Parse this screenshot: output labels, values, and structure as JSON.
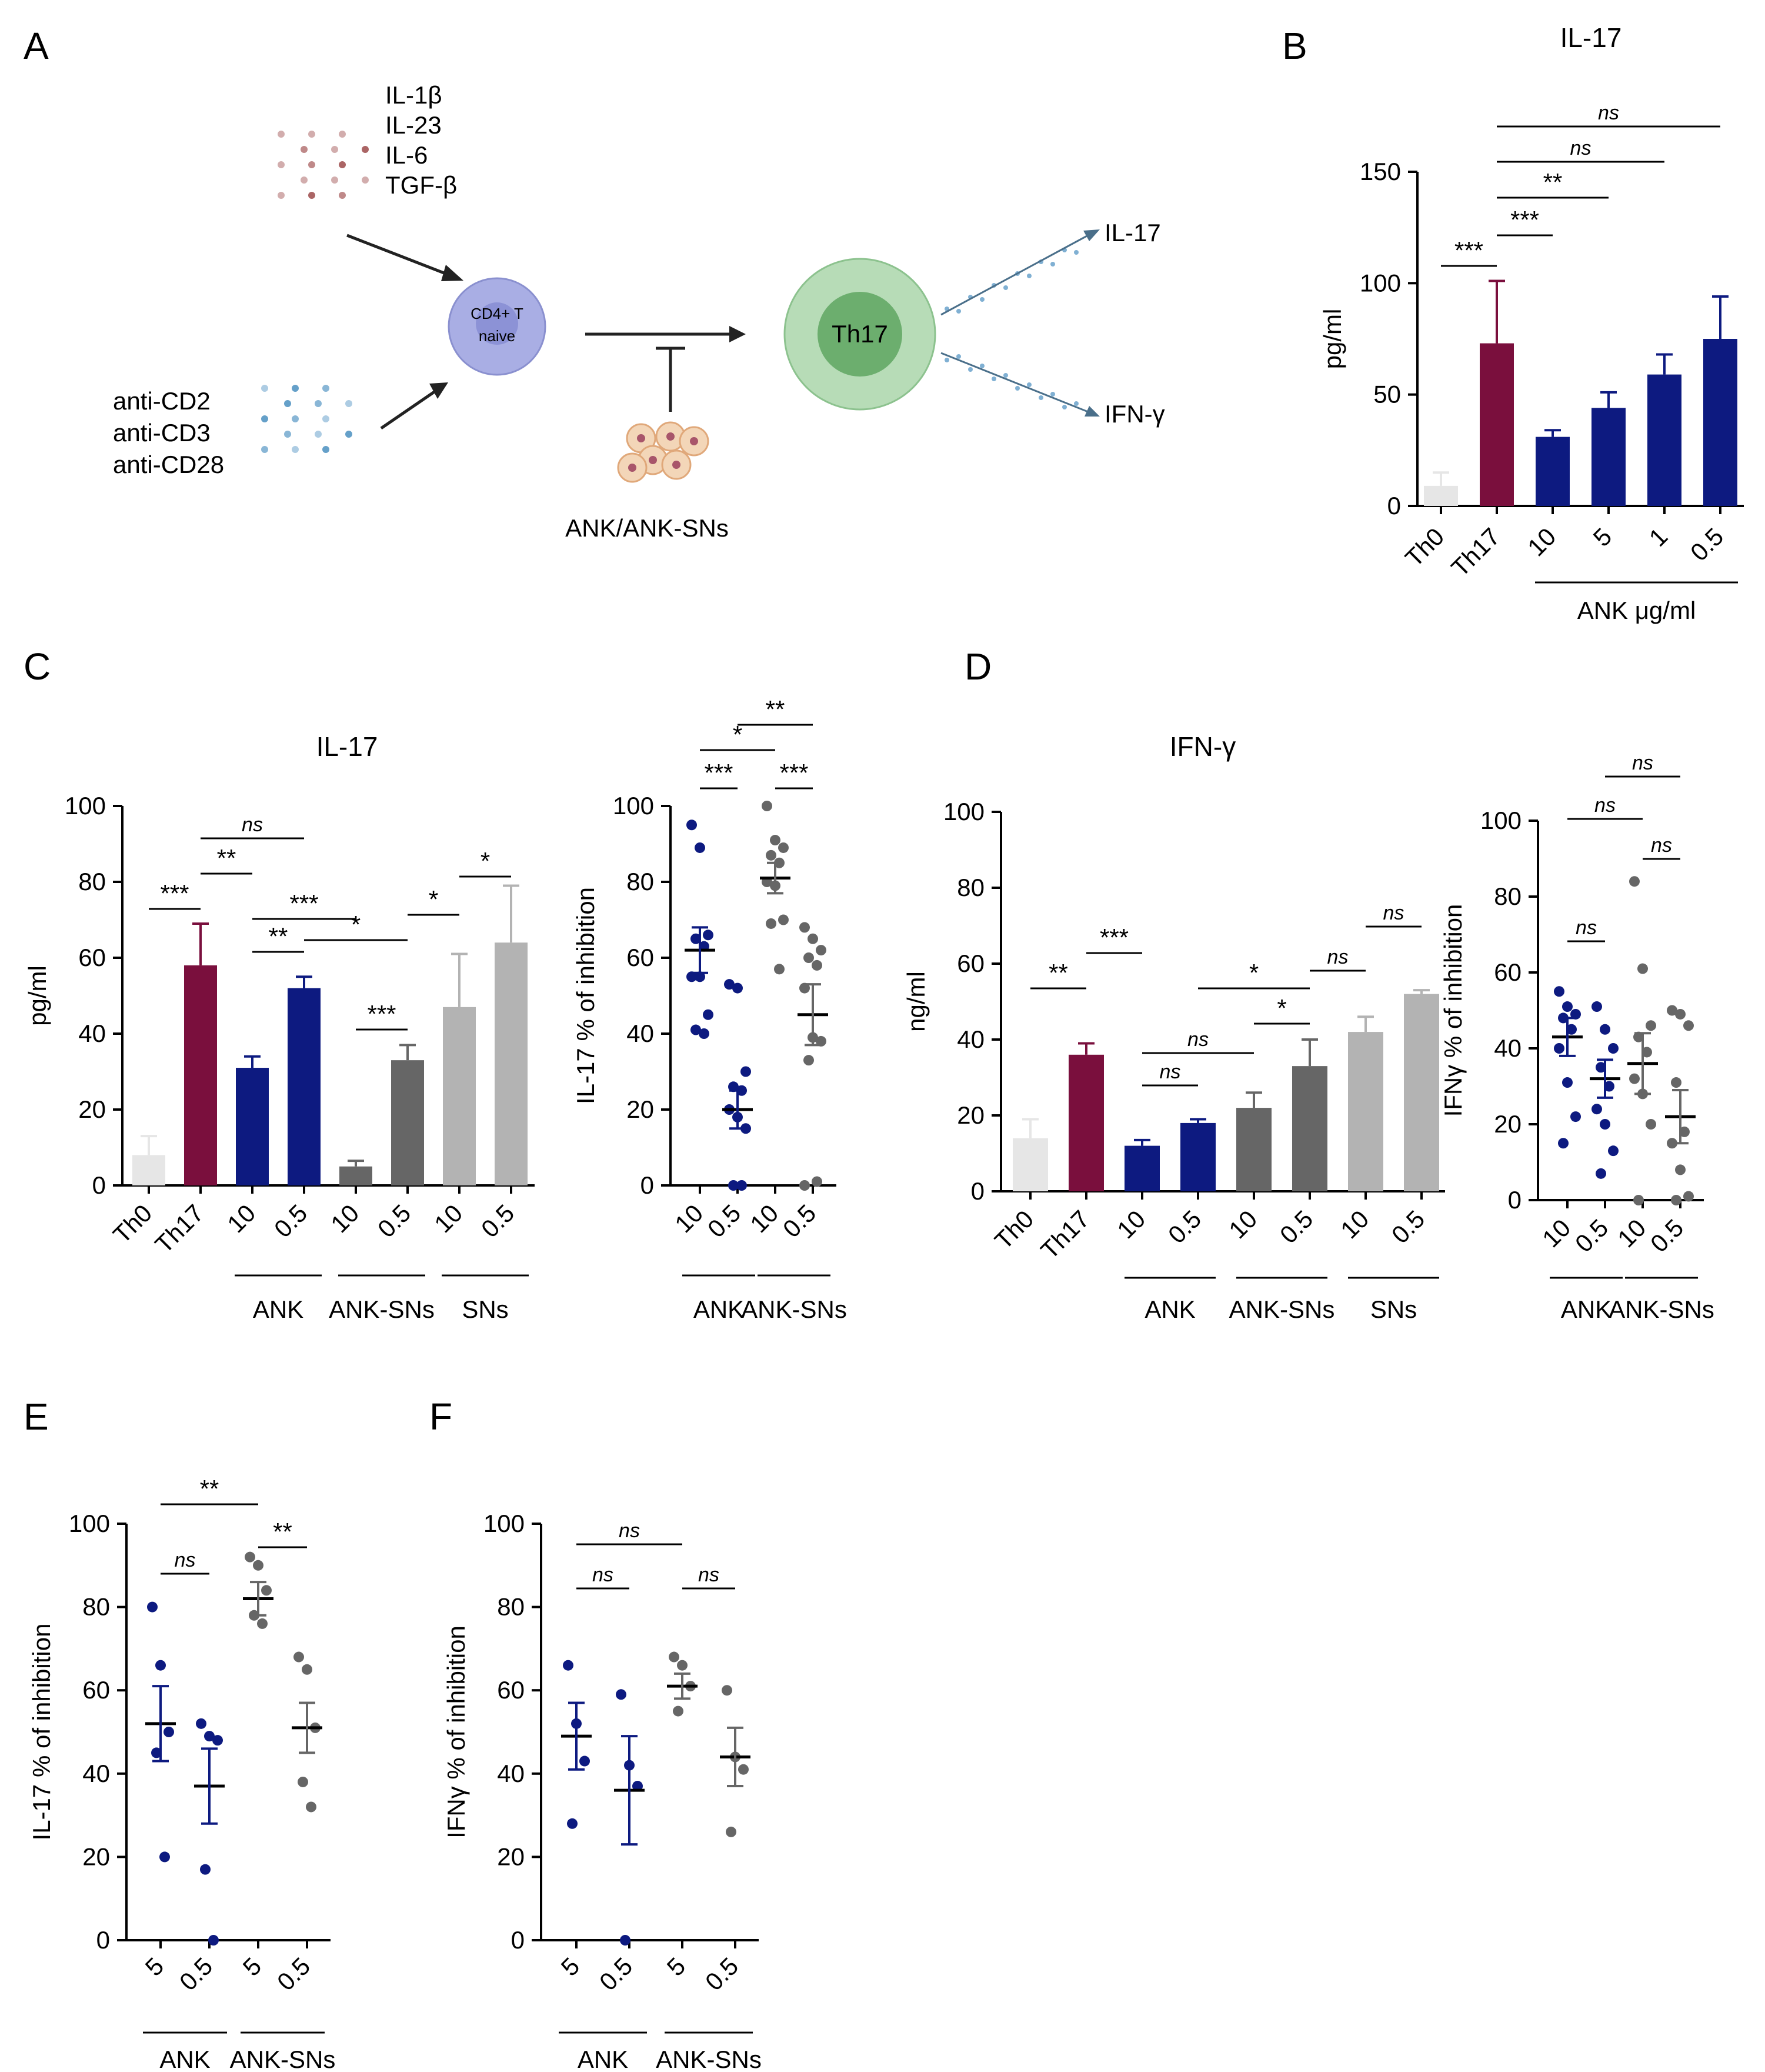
{
  "colors": {
    "th0": "#e6e6e6",
    "th17": "#7a0f3d",
    "ank": "#0d1a80",
    "ank_sns": "#666666",
    "sns": "#b3b3b3",
    "cytokine_dots": "#9c4a4a",
    "bead_dots": "#4a8fc0",
    "naive_cell": "#a9aee4",
    "th17_cell": "#93c898"
  },
  "panel_letters": [
    "A",
    "B",
    "C",
    "D",
    "E",
    "F"
  ],
  "schematic": {
    "cytokines": [
      "IL-1β",
      "IL-23",
      "IL-6",
      "TGF-β"
    ],
    "antibodies": [
      "anti-CD2",
      "anti-CD3",
      "anti-CD28"
    ],
    "naive_cell_lines": [
      "CD4+ T",
      "naive"
    ],
    "th17_label": "Th17",
    "treatment_label": "ANK/ANK-SNs",
    "outputs": [
      "IL-17",
      "IFN-γ"
    ]
  },
  "chart_data": [
    {
      "id": "B",
      "type": "bar",
      "title": "IL-17",
      "ylabel": "pg/ml",
      "ylim": [
        0,
        150
      ],
      "yticks": [
        0,
        50,
        100,
        150
      ],
      "categories": [
        "Th0",
        "Th17",
        "10",
        "5",
        "1",
        "0.5"
      ],
      "values": [
        9,
        73,
        31,
        44,
        59,
        75
      ],
      "errors": [
        6,
        28,
        3,
        7,
        9,
        19
      ],
      "bar_colors": [
        "th0",
        "th17",
        "ank",
        "ank",
        "ank",
        "ank"
      ],
      "groups": [
        {
          "label": "ANK μg/ml",
          "from": 2,
          "to": 5
        }
      ],
      "significance": [
        {
          "label": "***",
          "from": 0,
          "to": 1
        },
        {
          "label": "***",
          "from": 1,
          "to": 2
        },
        {
          "label": "**",
          "from": 1,
          "to": 3
        },
        {
          "label": "ns",
          "from": 1,
          "to": 4
        },
        {
          "label": "ns",
          "from": 1,
          "to": 5
        }
      ]
    },
    {
      "id": "C1",
      "type": "bar",
      "title": "IL-17",
      "ylabel": "pg/ml",
      "ylim": [
        0,
        100
      ],
      "yticks": [
        0,
        20,
        40,
        60,
        80,
        100
      ],
      "categories": [
        "Th0",
        "Th17",
        "10",
        "0.5",
        "10",
        "0.5",
        "10",
        "0.5"
      ],
      "values": [
        8,
        58,
        31,
        52,
        5,
        33,
        47,
        64
      ],
      "errors": [
        5,
        11,
        3,
        3,
        1.5,
        4,
        14,
        15
      ],
      "bar_colors": [
        "th0",
        "th17",
        "ank",
        "ank",
        "ank_sns",
        "ank_sns",
        "sns",
        "sns"
      ],
      "groups": [
        {
          "label": "ANK",
          "from": 2,
          "to": 3
        },
        {
          "label": "ANK-SNs",
          "from": 4,
          "to": 5
        },
        {
          "label": "SNs",
          "from": 6,
          "to": 7
        }
      ],
      "significance": [
        {
          "label": "***",
          "from": 0,
          "to": 1
        },
        {
          "label": "**",
          "from": 1,
          "to": 2
        },
        {
          "label": "ns",
          "from": 1,
          "to": 3
        },
        {
          "label": "***",
          "from": 2,
          "to": 4
        },
        {
          "label": "**",
          "from": 2,
          "to": 3
        },
        {
          "label": "*",
          "from": 3,
          "to": 5
        },
        {
          "label": "***",
          "from": 4,
          "to": 5
        },
        {
          "label": "*",
          "from": 5,
          "to": 6
        },
        {
          "label": "*",
          "from": 6,
          "to": 7
        }
      ]
    },
    {
      "id": "C2",
      "type": "scatter",
      "ylabel": "IL-17 % of inhibition",
      "ylim": [
        0,
        100
      ],
      "yticks": [
        0,
        20,
        40,
        60,
        80,
        100
      ],
      "categories": [
        "10",
        "0.5",
        "10",
        "0.5"
      ],
      "point_colors": [
        "ank",
        "ank",
        "ank_sns",
        "ank_sns"
      ],
      "points": [
        [
          95,
          89,
          66,
          65,
          63,
          55,
          55,
          45,
          41,
          40
        ],
        [
          53,
          52,
          30,
          26,
          25,
          20,
          18,
          15,
          0,
          0
        ],
        [
          100,
          91,
          89,
          87,
          85,
          80,
          79,
          70,
          69,
          57
        ],
        [
          68,
          65,
          62,
          60,
          58,
          52,
          39,
          38,
          33,
          1,
          0
        ]
      ],
      "means": [
        62,
        20,
        81,
        45
      ],
      "sem": [
        6,
        5,
        4,
        8
      ],
      "groups": [
        {
          "label": "ANK",
          "from": 0,
          "to": 1
        },
        {
          "label": "ANK-SNs",
          "from": 2,
          "to": 3
        }
      ],
      "significance": [
        {
          "label": "***",
          "from": 0,
          "to": 1
        },
        {
          "label": "*",
          "from": 0,
          "to": 2
        },
        {
          "label": "**",
          "from": 1,
          "to": 3
        },
        {
          "label": "***",
          "from": 2,
          "to": 3
        }
      ]
    },
    {
      "id": "D1",
      "type": "bar",
      "title": "IFN-γ",
      "ylabel": "ng/ml",
      "ylim": [
        0,
        100
      ],
      "yticks": [
        0,
        20,
        40,
        60,
        80,
        100
      ],
      "categories": [
        "Th0",
        "Th17",
        "10",
        "0.5",
        "10",
        "0.5",
        "10",
        "0.5"
      ],
      "values": [
        14,
        36,
        12,
        18,
        22,
        33,
        42,
        52
      ],
      "errors": [
        5,
        3,
        1.5,
        1,
        4,
        7,
        4,
        1
      ],
      "bar_colors": [
        "th0",
        "th17",
        "ank",
        "ank",
        "ank_sns",
        "ank_sns",
        "sns",
        "sns"
      ],
      "groups": [
        {
          "label": "ANK",
          "from": 2,
          "to": 3
        },
        {
          "label": "ANK-SNs",
          "from": 4,
          "to": 5
        },
        {
          "label": "SNs",
          "from": 6,
          "to": 7
        }
      ],
      "significance": [
        {
          "label": "**",
          "from": 0,
          "to": 1
        },
        {
          "label": "***",
          "from": 1,
          "to": 2
        },
        {
          "label": "ns",
          "from": 2,
          "to": 3
        },
        {
          "label": "ns",
          "from": 2,
          "to": 4
        },
        {
          "label": "*",
          "from": 3,
          "to": 5
        },
        {
          "label": "*",
          "from": 4,
          "to": 5
        },
        {
          "label": "ns",
          "from": 5,
          "to": 6
        },
        {
          "label": "ns",
          "from": 6,
          "to": 7
        }
      ]
    },
    {
      "id": "D2",
      "type": "scatter",
      "ylabel": "IFNγ % of inhibition",
      "ylim": [
        0,
        100
      ],
      "yticks": [
        0,
        20,
        40,
        60,
        80,
        100
      ],
      "categories": [
        "10",
        "0.5",
        "10",
        "0.5"
      ],
      "point_colors": [
        "ank",
        "ank",
        "ank_sns",
        "ank_sns"
      ],
      "points": [
        [
          55,
          51,
          49,
          48,
          45,
          40,
          31,
          22,
          15
        ],
        [
          51,
          45,
          40,
          35,
          30,
          24,
          20,
          13,
          7
        ],
        [
          84,
          61,
          46,
          43,
          39,
          32,
          28,
          20,
          0
        ],
        [
          50,
          49,
          46,
          31,
          18,
          15,
          8,
          1,
          0
        ]
      ],
      "means": [
        43,
        32,
        36,
        22
      ],
      "sem": [
        5,
        5,
        8,
        7
      ],
      "groups": [
        {
          "label": "ANK",
          "from": 0,
          "to": 1
        },
        {
          "label": "ANK-SNs",
          "from": 2,
          "to": 3
        }
      ],
      "significance": [
        {
          "label": "ns",
          "from": 0,
          "to": 1
        },
        {
          "label": "ns",
          "from": 0,
          "to": 2
        },
        {
          "label": "ns",
          "from": 1,
          "to": 3
        },
        {
          "label": "ns",
          "from": 2,
          "to": 3
        }
      ]
    },
    {
      "id": "E",
      "type": "scatter",
      "ylabel": "IL-17 % of inhibition",
      "ylim": [
        0,
        100
      ],
      "yticks": [
        0,
        20,
        40,
        60,
        80,
        100
      ],
      "categories": [
        "5",
        "0.5",
        "5",
        "0.5"
      ],
      "point_colors": [
        "ank",
        "ank",
        "ank_sns",
        "ank_sns"
      ],
      "points": [
        [
          80,
          66,
          50,
          45,
          20
        ],
        [
          52,
          49,
          48,
          17,
          0
        ],
        [
          92,
          90,
          84,
          78,
          76
        ],
        [
          68,
          65,
          51,
          38,
          32
        ]
      ],
      "means": [
        52,
        37,
        82,
        51
      ],
      "sem": [
        9,
        9,
        4,
        6
      ],
      "groups": [
        {
          "label": "ANK",
          "from": 0,
          "to": 1
        },
        {
          "label": "ANK-SNs",
          "from": 2,
          "to": 3
        }
      ],
      "significance": [
        {
          "label": "ns",
          "from": 0,
          "to": 1
        },
        {
          "label": "**",
          "from": 0,
          "to": 2
        },
        {
          "label": "**",
          "from": 2,
          "to": 3
        }
      ]
    },
    {
      "id": "F",
      "type": "scatter",
      "ylabel": "IFNγ % of inhibition",
      "ylim": [
        0,
        100
      ],
      "yticks": [
        0,
        20,
        40,
        60,
        80,
        100
      ],
      "categories": [
        "5",
        "0.5",
        "5",
        "0.5"
      ],
      "point_colors": [
        "ank",
        "ank",
        "ank_sns",
        "ank_sns"
      ],
      "points": [
        [
          66,
          52,
          43,
          28
        ],
        [
          59,
          42,
          37,
          0
        ],
        [
          68,
          66,
          61,
          55
        ],
        [
          60,
          44,
          41,
          26
        ]
      ],
      "means": [
        49,
        36,
        61,
        44
      ],
      "sem": [
        8,
        13,
        3,
        7
      ],
      "groups": [
        {
          "label": "ANK",
          "from": 0,
          "to": 1
        },
        {
          "label": "ANK-SNs",
          "from": 2,
          "to": 3
        }
      ],
      "significance": [
        {
          "label": "ns",
          "from": 0,
          "to": 2
        },
        {
          "label": "ns",
          "from": 0,
          "to": 1
        },
        {
          "label": "ns",
          "from": 2,
          "to": 3
        }
      ]
    }
  ]
}
